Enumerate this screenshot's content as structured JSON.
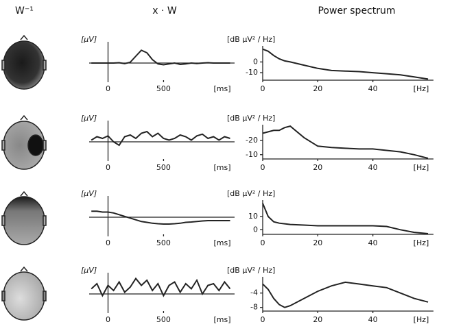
{
  "columns": [
    "W⁻¹",
    "x · W",
    "Power spectrum"
  ],
  "chart_data": [
    {
      "type": "line",
      "ylabel": "[μV]",
      "xlabel": "[ms]",
      "color": "#222222",
      "x": [
        -150,
        -100,
        -50,
        0,
        50,
        100,
        150,
        200,
        250,
        300,
        350,
        400,
        450,
        500,
        550,
        600,
        650,
        700,
        750,
        800,
        850,
        900,
        950,
        1000,
        1050,
        1100
      ],
      "values": [
        0,
        0,
        0,
        0,
        0,
        0.02,
        -0.03,
        0.05,
        0.4,
        0.75,
        0.6,
        0.2,
        -0.05,
        -0.1,
        -0.05,
        0,
        -0.08,
        -0.05,
        0,
        -0.03,
        0,
        0.02,
        0,
        0,
        0,
        0
      ],
      "xlim": [
        -170,
        1140
      ],
      "ylim": [
        -1,
        1
      ],
      "xticks": [
        0,
        500
      ]
    },
    {
      "type": "line",
      "ylabel": "[dB μV² / Hz]",
      "xlabel": "[Hz]",
      "color": "#222222",
      "x": [
        0,
        2,
        4,
        6,
        8,
        10,
        15,
        20,
        25,
        30,
        35,
        40,
        45,
        50,
        55,
        60
      ],
      "values": [
        12,
        10,
        6,
        3,
        1,
        0,
        -3,
        -6,
        -8,
        -8.5,
        -9,
        -10,
        -11,
        -12,
        -14,
        -16
      ],
      "xlim": [
        0,
        62
      ],
      "ylim": [
        -17,
        15
      ],
      "xticks": [
        0,
        20,
        40
      ],
      "yticks": [
        0,
        -10
      ]
    },
    {
      "type": "line",
      "ylabel": "[μV]",
      "xlabel": "[ms]",
      "color": "#222222",
      "x": [
        -150,
        -100,
        -50,
        0,
        50,
        100,
        150,
        200,
        250,
        300,
        350,
        400,
        450,
        500,
        550,
        600,
        650,
        700,
        750,
        800,
        850,
        900,
        950,
        1000,
        1050,
        1100
      ],
      "values": [
        0.1,
        0.3,
        0.2,
        0.35,
        0,
        -0.2,
        0.3,
        0.4,
        0.2,
        0.5,
        0.6,
        0.3,
        0.5,
        0.2,
        0.1,
        0.2,
        0.4,
        0.3,
        0.1,
        0.35,
        0.45,
        0.2,
        0.3,
        0.1,
        0.3,
        0.2
      ],
      "xlim": [
        -170,
        1140
      ],
      "ylim": [
        -1,
        1
      ],
      "xticks": [
        0,
        500
      ]
    },
    {
      "type": "line",
      "ylabel": "[dB μV² / Hz]",
      "xlabel": "[Hz]",
      "color": "#222222",
      "x": [
        0,
        2,
        4,
        6,
        8,
        10,
        15,
        20,
        25,
        30,
        35,
        40,
        45,
        50,
        55,
        60
      ],
      "values": [
        -25,
        -26,
        -27,
        -27,
        -29,
        -30,
        -22,
        -16,
        -15,
        -14.5,
        -14,
        -14,
        -13,
        -12,
        -10,
        -7.5
      ],
      "xlim": [
        0,
        62
      ],
      "ylim": [
        -7,
        -31
      ],
      "xticks": [
        0,
        20,
        40
      ],
      "yticks": [
        -20,
        -10
      ]
    },
    {
      "type": "line",
      "ylabel": "[μV]",
      "xlabel": "[ms]",
      "color": "#222222",
      "x": [
        -150,
        -100,
        -50,
        0,
        50,
        100,
        150,
        200,
        250,
        300,
        350,
        400,
        450,
        500,
        550,
        600,
        650,
        700,
        750,
        800,
        850,
        900,
        950,
        1000,
        1050,
        1100
      ],
      "values": [
        0.35,
        0.35,
        0.3,
        0.3,
        0.25,
        0.15,
        0.05,
        -0.05,
        -0.15,
        -0.25,
        -0.3,
        -0.35,
        -0.38,
        -0.4,
        -0.4,
        -0.38,
        -0.35,
        -0.3,
        -0.28,
        -0.25,
        -0.22,
        -0.2,
        -0.2,
        -0.2,
        -0.2,
        -0.2
      ],
      "xlim": [
        -170,
        1140
      ],
      "ylim": [
        -1,
        1
      ],
      "xticks": [
        0,
        500
      ]
    },
    {
      "type": "line",
      "ylabel": "[dB μV² / Hz]",
      "xlabel": "[Hz]",
      "color": "#222222",
      "x": [
        0,
        2,
        4,
        6,
        8,
        10,
        15,
        20,
        25,
        30,
        35,
        40,
        45,
        50,
        55,
        60
      ],
      "values": [
        20,
        10,
        6,
        5,
        4.5,
        4,
        3.5,
        3,
        3,
        3,
        3,
        3,
        2.5,
        0,
        -2,
        -3
      ],
      "xlim": [
        0,
        62
      ],
      "ylim": [
        -3.5,
        22.5
      ],
      "xticks": [
        0,
        20,
        40
      ],
      "yticks": [
        10,
        0
      ]
    },
    {
      "type": "line",
      "ylabel": "[μV]",
      "xlabel": "[ms]",
      "color": "#222222",
      "x": [
        -150,
        -100,
        -50,
        0,
        50,
        100,
        150,
        200,
        250,
        300,
        350,
        400,
        450,
        500,
        550,
        600,
        650,
        700,
        750,
        800,
        850,
        900,
        950,
        1000,
        1050,
        1100
      ],
      "values": [
        0.3,
        0.6,
        -0.1,
        0.5,
        0.2,
        0.7,
        0.1,
        0.4,
        0.9,
        0.5,
        0.8,
        0.2,
        0.6,
        -0.1,
        0.5,
        0.7,
        0.1,
        0.6,
        0.3,
        0.8,
        0,
        0.5,
        0.6,
        0.2,
        0.7,
        0.3
      ],
      "xlim": [
        -170,
        1140
      ],
      "ylim": [
        -1,
        1
      ],
      "xticks": [
        0,
        500
      ]
    },
    {
      "type": "line",
      "ylabel": "[dB μV² / Hz]",
      "xlabel": "[Hz]",
      "color": "#222222",
      "x": [
        0,
        2,
        4,
        6,
        8,
        10,
        15,
        20,
        25,
        30,
        35,
        40,
        45,
        50,
        55,
        60
      ],
      "values": [
        -1.5,
        -3,
        -5.5,
        -7.2,
        -8,
        -7.5,
        -5.5,
        -3.5,
        -2,
        -1,
        -1.5,
        -2,
        -2.5,
        -4,
        -5.5,
        -6.5
      ],
      "xlim": [
        0,
        62
      ],
      "ylim": [
        -9,
        0.5
      ],
      "xticks": [
        0,
        20,
        40
      ],
      "yticks": [
        -4,
        -8
      ]
    }
  ]
}
